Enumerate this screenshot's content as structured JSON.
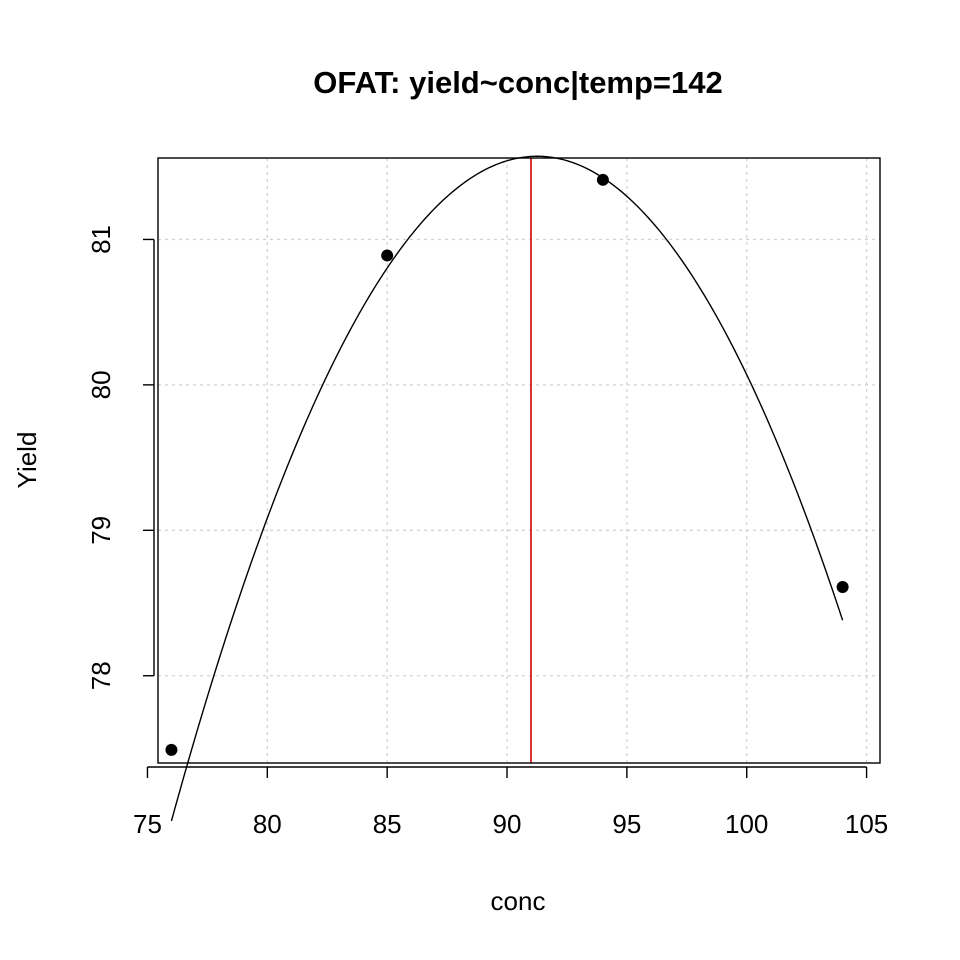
{
  "chart_data": {
    "type": "scatter",
    "title": "OFAT: yield~conc|temp=142",
    "xlabel": "conc",
    "ylabel": "Yield",
    "xlim": [
      75.44,
      105.56
    ],
    "ylim": [
      77.4,
      81.56
    ],
    "xticks": [
      75,
      80,
      85,
      90,
      95,
      100,
      105
    ],
    "yticks": [
      78,
      79,
      80,
      81
    ],
    "grid": true,
    "points": [
      {
        "x": 76,
        "y": 77.49
      },
      {
        "x": 85,
        "y": 80.89
      },
      {
        "x": 94,
        "y": 81.41
      },
      {
        "x": 104,
        "y": 78.61
      }
    ],
    "fit_curve": {
      "kind": "quadratic",
      "coefficients": {
        "a": -0.01964,
        "b": 3.5845,
        "c": -81.98
      }
    },
    "optimum_line": {
      "x": 91,
      "color": "#cc0000"
    }
  }
}
